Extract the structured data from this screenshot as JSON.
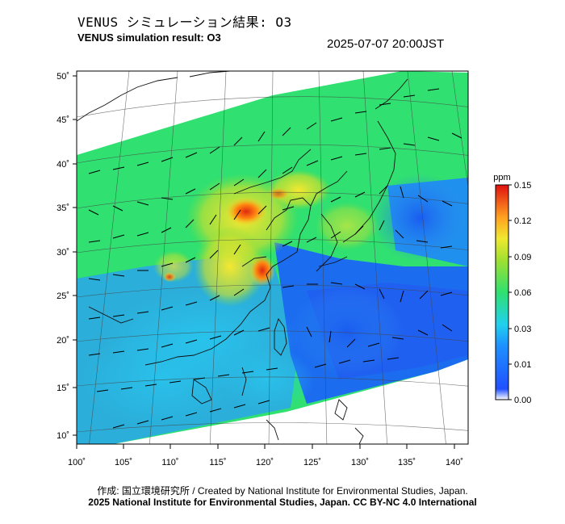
{
  "header": {
    "title_jp": "VENUS シミュレーション結果: O3",
    "title_en": "VENUS simulation result: O3",
    "datetime": "2025-07-07 20:00JST"
  },
  "map": {
    "lat_ticks": [
      "50˚",
      "45˚",
      "40˚",
      "35˚",
      "30˚",
      "25˚",
      "20˚",
      "15˚",
      "10˚"
    ],
    "lon_ticks": [
      "100˚",
      "105˚",
      "110˚",
      "115˚",
      "120˚",
      "125˚",
      "130˚",
      "135˚",
      "140˚"
    ],
    "field": "O3 concentration with wind vectors"
  },
  "colorbar": {
    "unit": "ppm",
    "ticks": [
      "0.15",
      "0.12",
      "0.09",
      "0.06",
      "0.03",
      "0.01",
      "0.00"
    ],
    "colors": [
      "#ffffff",
      "#1e60ff",
      "#2bd0f0",
      "#3ee05a",
      "#f0f030",
      "#ff8000",
      "#e00000"
    ]
  },
  "footer": {
    "credit": "作成: 国立環境研究所 / Created by National Institute for Environmental Studies, Japan.",
    "copyright": "2025 National Institute for Environmental Studies, Japan. CC BY-NC 4.0 International"
  }
}
